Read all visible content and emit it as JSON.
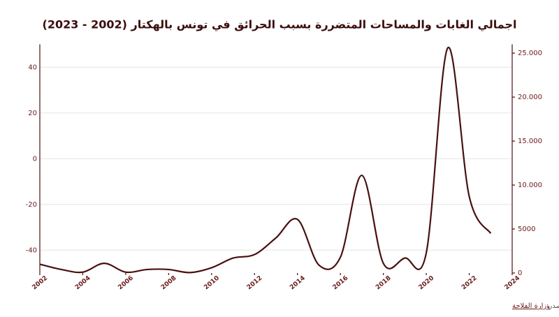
{
  "chart_data": {
    "type": "line",
    "title": "اجمالي الغابات والمساحات المتضررة بسبب الحرائق في تونس بالهكتار (2002 - 2023)",
    "source_label": "المصدر:",
    "source_link": "وزارة الفلاحة",
    "x": [
      2002,
      2003,
      2004,
      2005,
      2006,
      2007,
      2008,
      2009,
      2010,
      2011,
      2012,
      2013,
      2014,
      2015,
      2016,
      2017,
      2018,
      2019,
      2020,
      2021,
      2022,
      2023
    ],
    "xlim": [
      2002,
      2024
    ],
    "xticks": [
      2002,
      2004,
      2006,
      2008,
      2010,
      2012,
      2014,
      2016,
      2018,
      2020,
      2022,
      2024
    ],
    "ylim": [
      -50,
      50
    ],
    "yticks": [
      -40,
      -20,
      0,
      20,
      40
    ],
    "y2lim": [
      0,
      26000
    ],
    "y2ticks": [
      0,
      5000,
      {
        "value": 10000,
        "label": "10.000"
      },
      {
        "value": 15000,
        "label": "15.000"
      },
      {
        "value": 20000,
        "label": "20.000"
      },
      {
        "value": 25000,
        "label": "25.000"
      }
    ],
    "grid": true,
    "series": [
      {
        "color": "#4a1010",
        "axis": "y2",
        "values": [
          1000,
          400,
          100,
          1100,
          100,
          400,
          400,
          50,
          600,
          1700,
          2100,
          4000,
          6100,
          900,
          1800,
          11100,
          1100,
          1700,
          2300,
          25600,
          8700,
          4500
        ]
      }
    ]
  }
}
